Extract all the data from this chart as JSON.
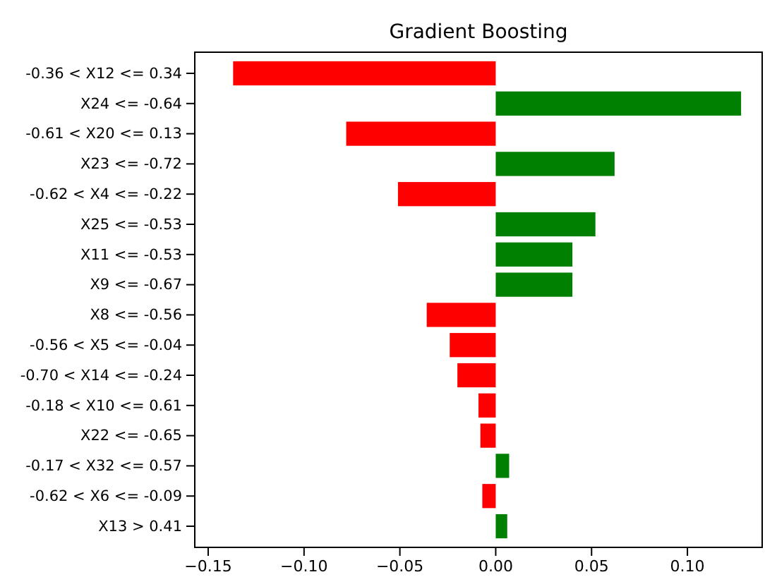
{
  "chart_data": {
    "type": "bar",
    "orientation": "horizontal",
    "title": "Gradient Boosting",
    "categories": [
      "-0.36 < X12 <= 0.34",
      "X24 <= -0.64",
      "-0.61 < X20 <= 0.13",
      "X23 <= -0.72",
      "-0.62 < X4 <= -0.22",
      "X25 <= -0.53",
      "X11 <= -0.53",
      "X9 <= -0.67",
      "X8 <= -0.56",
      "-0.56 < X5 <= -0.04",
      "-0.70 < X14 <= -0.24",
      "-0.18 < X10 <= 0.61",
      "X22 <= -0.65",
      "-0.17 < X32 <= 0.57",
      "-0.62 < X6 <= -0.09",
      "X13 > 0.41"
    ],
    "values": [
      -0.137,
      0.128,
      -0.078,
      0.062,
      -0.051,
      0.052,
      0.04,
      0.04,
      -0.036,
      -0.024,
      -0.02,
      -0.009,
      -0.008,
      0.007,
      -0.007,
      0.006
    ],
    "colors": [
      "#ff0000",
      "#008000",
      "#ff0000",
      "#008000",
      "#ff0000",
      "#008000",
      "#008000",
      "#008000",
      "#ff0000",
      "#ff0000",
      "#ff0000",
      "#ff0000",
      "#ff0000",
      "#008000",
      "#ff0000",
      "#008000"
    ],
    "xlim": [
      -0.157,
      0.139
    ],
    "xticks": [
      {
        "value": -0.15,
        "label": "−0.15"
      },
      {
        "value": -0.1,
        "label": "−0.10"
      },
      {
        "value": -0.05,
        "label": "−0.05"
      },
      {
        "value": 0,
        "label": "0.00"
      },
      {
        "value": 0.05,
        "label": "0.05"
      },
      {
        "value": 0.1,
        "label": "0.10"
      }
    ],
    "grid": false
  }
}
